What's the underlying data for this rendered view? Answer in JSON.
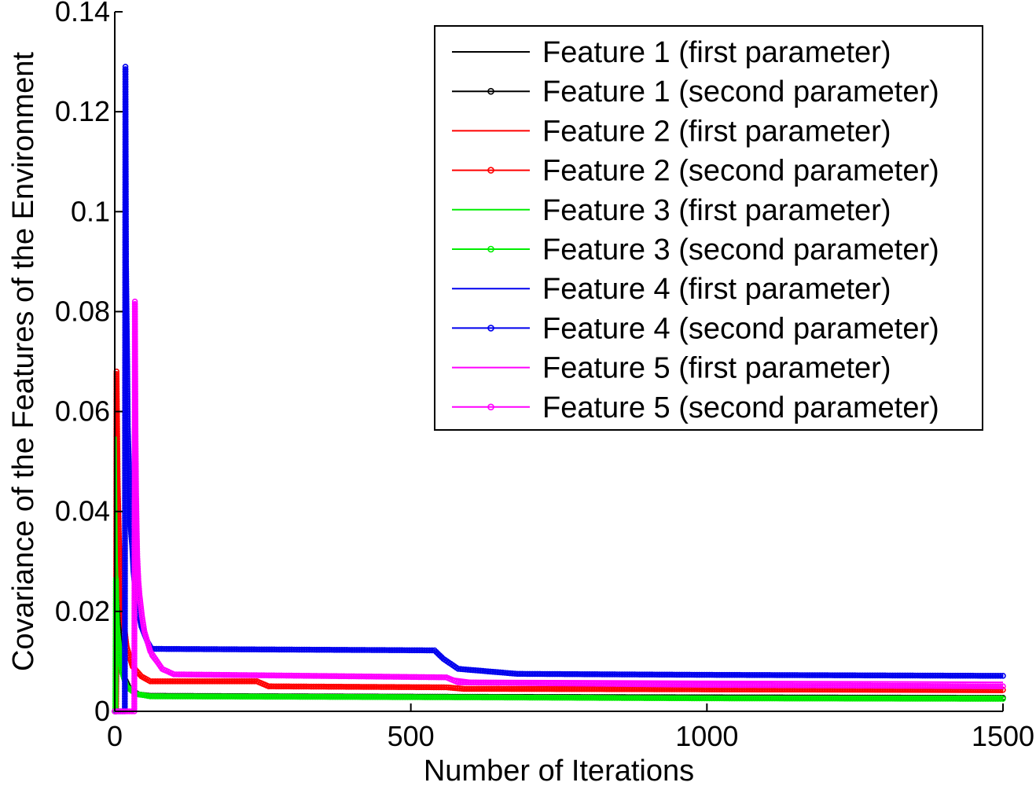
{
  "chart_data": {
    "type": "line",
    "xlabel": "Number of Iterations",
    "ylabel": "Covariance of the Features of the Environment",
    "xlim": [
      0,
      1500
    ],
    "ylim": [
      0,
      0.14
    ],
    "xticks": [
      "0",
      "500",
      "1000",
      "1500"
    ],
    "yticks": [
      "0",
      "0.02",
      "0.04",
      "0.06",
      "0.08",
      "0.1",
      "0.12",
      "0.14"
    ],
    "grid": false,
    "legend_position": "top-right",
    "series": [
      {
        "name": "Feature 1 (first parameter)",
        "color": "#000000",
        "marker": "none",
        "points": [
          [
            0,
            0
          ],
          [
            2,
            0
          ],
          [
            4,
            0.0245
          ],
          [
            8,
            0.012
          ],
          [
            15,
            0.006
          ],
          [
            25,
            0.004
          ],
          [
            40,
            0.003
          ],
          [
            60,
            0.0028
          ],
          [
            200,
            0.0027
          ],
          [
            600,
            0.0026
          ],
          [
            1000,
            0.0025
          ],
          [
            1500,
            0.0024
          ]
        ]
      },
      {
        "name": "Feature 1 (second parameter)",
        "color": "#000000",
        "marker": "circle",
        "points": [
          [
            0,
            0
          ],
          [
            2,
            0
          ],
          [
            4,
            0.0245
          ],
          [
            8,
            0.014
          ],
          [
            15,
            0.007
          ],
          [
            25,
            0.0045
          ],
          [
            40,
            0.0034
          ],
          [
            60,
            0.0031
          ],
          [
            300,
            0.003
          ],
          [
            600,
            0.0029
          ],
          [
            1000,
            0.0028
          ],
          [
            1500,
            0.0027
          ]
        ]
      },
      {
        "name": "Feature 2 (first parameter)",
        "color": "#ff0000",
        "marker": "none",
        "points": [
          [
            0,
            0
          ],
          [
            2,
            0
          ],
          [
            3,
            0.055
          ],
          [
            5,
            0.045
          ],
          [
            8,
            0.03
          ],
          [
            12,
            0.02
          ],
          [
            20,
            0.011
          ],
          [
            35,
            0.0075
          ],
          [
            60,
            0.006
          ],
          [
            240,
            0.006
          ],
          [
            260,
            0.005
          ],
          [
            560,
            0.0048
          ],
          [
            580,
            0.0042
          ],
          [
            1000,
            0.004
          ],
          [
            1500,
            0.0038
          ]
        ]
      },
      {
        "name": "Feature 2 (second parameter)",
        "color": "#ff0000",
        "marker": "circle",
        "points": [
          [
            0,
            0
          ],
          [
            2,
            0
          ],
          [
            3,
            0.068
          ],
          [
            5,
            0.0455
          ],
          [
            7,
            0.035
          ],
          [
            9,
            0.0285
          ],
          [
            11,
            0.0245
          ],
          [
            15,
            0.018
          ],
          [
            20,
            0.013
          ],
          [
            30,
            0.009
          ],
          [
            45,
            0.007
          ],
          [
            60,
            0.006
          ],
          [
            240,
            0.006
          ],
          [
            260,
            0.005
          ],
          [
            560,
            0.0048
          ],
          [
            590,
            0.0045
          ],
          [
            1000,
            0.0044
          ],
          [
            1500,
            0.0043
          ]
        ]
      },
      {
        "name": "Feature 3 (first parameter)",
        "color": "#00ee00",
        "marker": "none",
        "points": [
          [
            0,
            0
          ],
          [
            1,
            0
          ],
          [
            2,
            0.055
          ],
          [
            4,
            0.03
          ],
          [
            8,
            0.015
          ],
          [
            15,
            0.007
          ],
          [
            25,
            0.0045
          ],
          [
            40,
            0.0036
          ],
          [
            60,
            0.0034
          ],
          [
            600,
            0.0032
          ],
          [
            1000,
            0.003
          ],
          [
            1500,
            0.003
          ]
        ]
      },
      {
        "name": "Feature 3 (second parameter)",
        "color": "#00ee00",
        "marker": "circle",
        "points": [
          [
            0,
            0
          ],
          [
            1,
            0
          ],
          [
            2,
            0.0265
          ],
          [
            3,
            0.0185
          ],
          [
            5,
            0.0155
          ],
          [
            8,
            0.0125
          ],
          [
            12,
            0.008
          ],
          [
            20,
            0.005
          ],
          [
            35,
            0.0035
          ],
          [
            60,
            0.003
          ],
          [
            600,
            0.0028
          ],
          [
            1000,
            0.0026
          ],
          [
            1500,
            0.0025
          ]
        ]
      },
      {
        "name": "Feature 4 (first parameter)",
        "color": "#0000ee",
        "marker": "none",
        "points": [
          [
            0,
            0
          ],
          [
            17,
            0
          ],
          [
            18,
            0.129
          ],
          [
            19,
            0.09
          ],
          [
            21,
            0.055
          ],
          [
            24,
            0.038
          ],
          [
            28,
            0.028
          ],
          [
            34,
            0.021
          ],
          [
            45,
            0.016
          ],
          [
            60,
            0.0125
          ],
          [
            540,
            0.0122
          ],
          [
            555,
            0.0105
          ],
          [
            580,
            0.0085
          ],
          [
            680,
            0.0075
          ],
          [
            1000,
            0.0073
          ],
          [
            1500,
            0.007
          ]
        ]
      },
      {
        "name": "Feature 4 (second parameter)",
        "color": "#0000ee",
        "marker": "circle",
        "points": [
          [
            0,
            0
          ],
          [
            17,
            0
          ],
          [
            18,
            0.129
          ],
          [
            19,
            0.0895
          ],
          [
            21,
            0.0695
          ],
          [
            22,
            0.057
          ],
          [
            24,
            0.049
          ],
          [
            25,
            0.043
          ],
          [
            26,
            0.0385
          ],
          [
            28,
            0.035
          ],
          [
            30,
            0.0325
          ],
          [
            32,
            0.03
          ],
          [
            34,
            0.026
          ],
          [
            37,
            0.0235
          ],
          [
            40,
            0.02
          ],
          [
            45,
            0.017
          ],
          [
            55,
            0.014
          ],
          [
            62,
            0.0125
          ],
          [
            540,
            0.0122
          ],
          [
            555,
            0.0105
          ],
          [
            580,
            0.0085
          ],
          [
            680,
            0.0075
          ],
          [
            1000,
            0.0073
          ],
          [
            1500,
            0.0071
          ]
        ]
      },
      {
        "name": "Feature 5 (first parameter)",
        "color": "#ff00ff",
        "marker": "none",
        "points": [
          [
            0,
            0
          ],
          [
            33,
            0
          ],
          [
            34,
            0.075
          ],
          [
            36,
            0.045
          ],
          [
            39,
            0.03
          ],
          [
            43,
            0.022
          ],
          [
            50,
            0.015
          ],
          [
            60,
            0.011
          ],
          [
            80,
            0.008
          ],
          [
            100,
            0.0072
          ],
          [
            560,
            0.0068
          ],
          [
            600,
            0.0062
          ],
          [
            1000,
            0.006
          ],
          [
            1500,
            0.0058
          ]
        ]
      },
      {
        "name": "Feature 5 (second parameter)",
        "color": "#ff00ff",
        "marker": "circle",
        "points": [
          [
            0,
            0
          ],
          [
            33,
            0
          ],
          [
            34,
            0.082
          ],
          [
            35,
            0.0565
          ],
          [
            36,
            0.044
          ],
          [
            37,
            0.0365
          ],
          [
            38,
            0.031
          ],
          [
            39,
            0.0285
          ],
          [
            40,
            0.026
          ],
          [
            42,
            0.023
          ],
          [
            44,
            0.021
          ],
          [
            46,
            0.019
          ],
          [
            50,
            0.016
          ],
          [
            60,
            0.012
          ],
          [
            80,
            0.0085
          ],
          [
            100,
            0.0074
          ],
          [
            560,
            0.0068
          ],
          [
            580,
            0.0058
          ],
          [
            1000,
            0.0053
          ],
          [
            1500,
            0.005
          ]
        ]
      }
    ]
  }
}
